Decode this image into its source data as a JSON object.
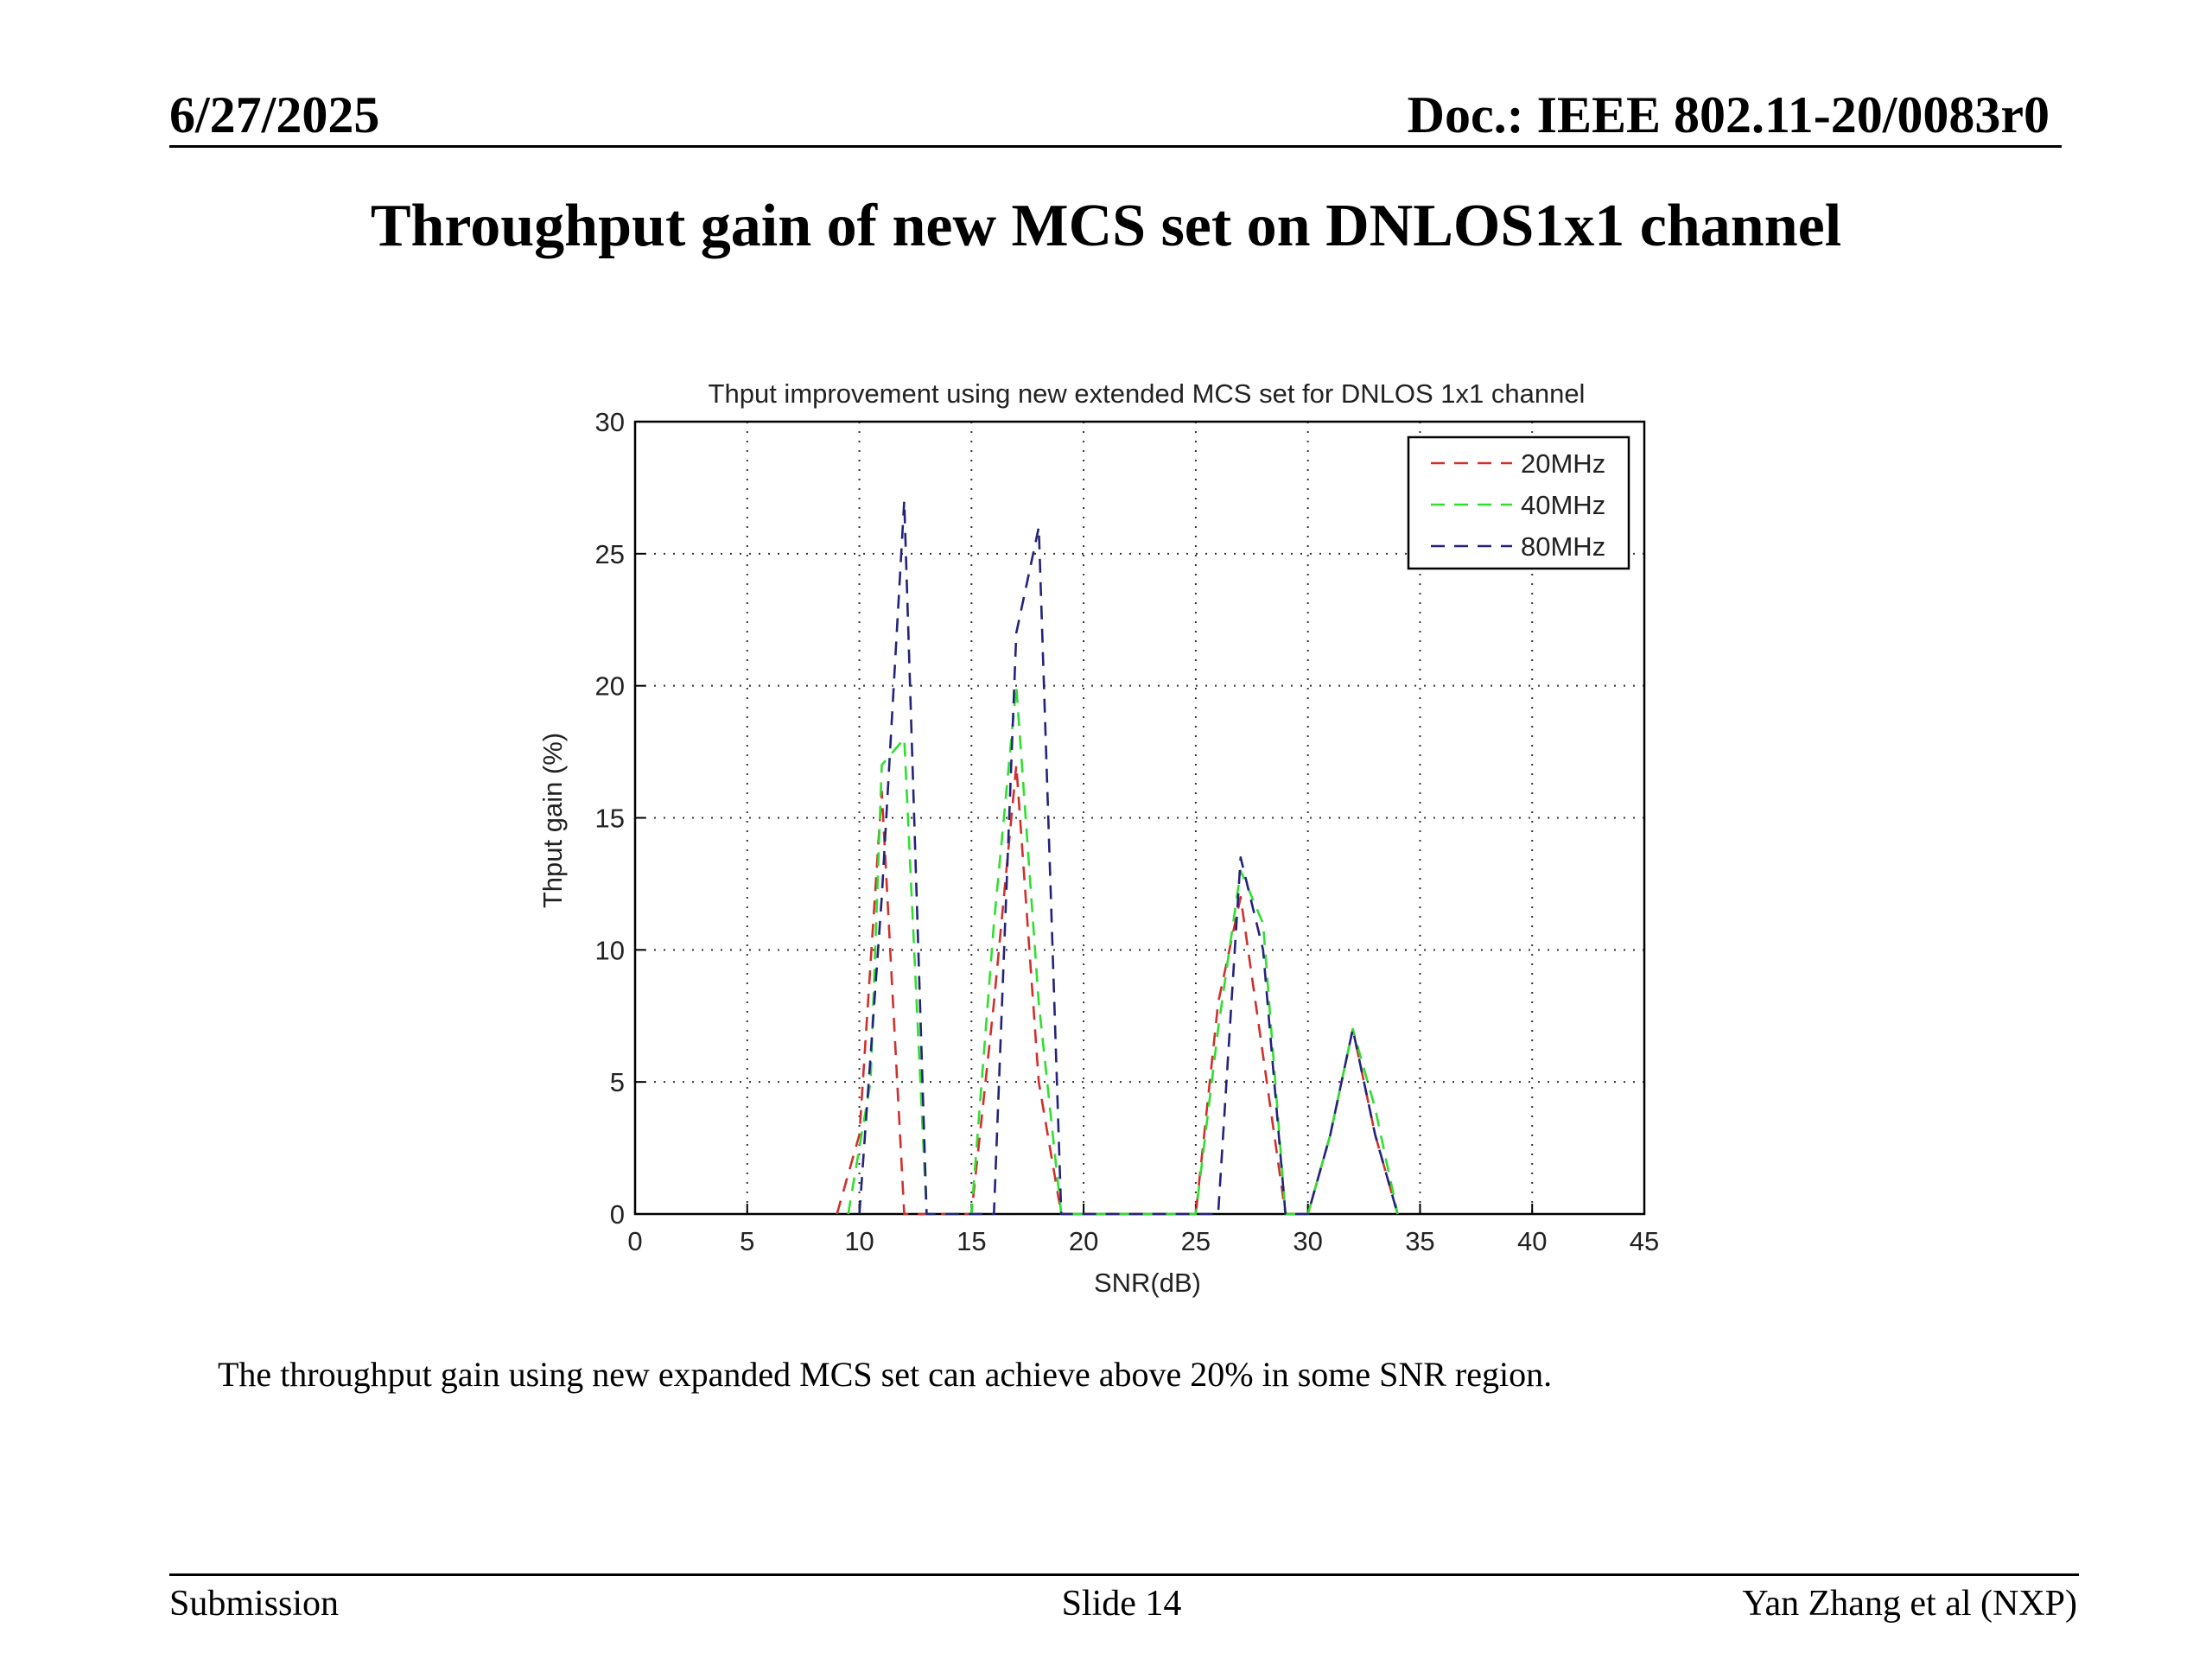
{
  "header": {
    "date": "6/27/2025",
    "doc": "Doc.: IEEE 802.11-20/0083r0"
  },
  "slide_title": "Throughput gain of new MCS set on DNLOS1x1 channel",
  "caption": "The throughput gain using new expanded MCS set can achieve above 20% in some SNR region.",
  "footer": {
    "left": "Submission",
    "center": "Slide 14",
    "right": "Yan Zhang et al (NXP)"
  },
  "chart_data": {
    "type": "line",
    "title": "Thput improvement using new extended MCS set for DNLOS 1x1 channel",
    "xlabel": "SNR(dB)",
    "ylabel": "Thput gain (%)",
    "xlim": [
      0,
      45
    ],
    "ylim": [
      0,
      30
    ],
    "xticks": [
      0,
      5,
      10,
      15,
      20,
      25,
      30,
      35,
      40,
      45
    ],
    "yticks": [
      0,
      5,
      10,
      15,
      20,
      25,
      30
    ],
    "grid": true,
    "line_style": "dashed",
    "legend_position": "top-right",
    "series": [
      {
        "name": "20MHz",
        "color": "#d0302c",
        "points": [
          [
            9,
            0
          ],
          [
            10,
            3
          ],
          [
            11,
            16
          ],
          [
            12,
            0
          ],
          [
            15,
            0
          ],
          [
            16,
            8
          ],
          [
            17,
            17
          ],
          [
            18,
            5
          ],
          [
            19,
            0
          ],
          [
            25,
            0
          ],
          [
            26,
            8
          ],
          [
            27,
            12
          ],
          [
            28,
            6
          ],
          [
            29,
            0
          ],
          [
            30,
            0
          ],
          [
            31,
            3
          ],
          [
            32,
            7
          ],
          [
            33,
            3
          ],
          [
            34,
            0
          ]
        ]
      },
      {
        "name": "40MHz",
        "color": "#2ee02e",
        "points": [
          [
            9.5,
            0
          ],
          [
            10.5,
            5
          ],
          [
            11,
            17
          ],
          [
            12,
            18
          ],
          [
            13,
            0
          ],
          [
            15,
            0
          ],
          [
            16,
            11
          ],
          [
            17,
            20
          ],
          [
            18,
            8
          ],
          [
            19,
            0
          ],
          [
            25,
            0
          ],
          [
            26,
            7
          ],
          [
            27,
            13
          ],
          [
            28,
            11
          ],
          [
            29,
            0
          ],
          [
            30,
            0
          ],
          [
            31,
            3
          ],
          [
            32,
            7
          ],
          [
            33,
            4
          ],
          [
            34,
            0
          ]
        ]
      },
      {
        "name": "80MHz",
        "color": "#23237a",
        "points": [
          [
            10,
            0
          ],
          [
            11,
            12
          ],
          [
            12,
            27
          ],
          [
            13,
            0
          ],
          [
            16,
            0
          ],
          [
            17,
            22
          ],
          [
            18,
            26
          ],
          [
            19,
            0
          ],
          [
            26,
            0
          ],
          [
            27,
            13.5
          ],
          [
            28,
            10
          ],
          [
            29,
            0
          ],
          [
            30,
            0
          ],
          [
            31,
            3
          ],
          [
            32,
            7
          ],
          [
            33,
            3
          ],
          [
            34,
            0
          ]
        ]
      }
    ]
  }
}
